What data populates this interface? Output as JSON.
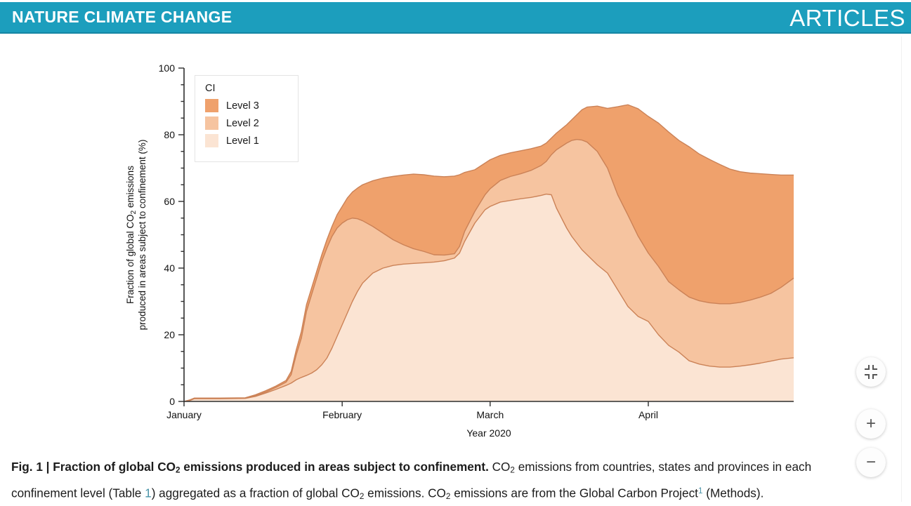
{
  "header": {
    "journal": "NATURE CLIMATE CHANGE",
    "section": "ARTICLES",
    "bg_color": "#1C9EBD"
  },
  "zoom_controls": {
    "fit": {
      "icon": "compress-icon"
    },
    "in": {
      "label": "+"
    },
    "out": {
      "label": "−"
    }
  },
  "caption": {
    "line1": [
      {
        "t": "Fig. 1 | Fraction of global CO",
        "b": true
      },
      {
        "t": "2",
        "b": true,
        "sub": true
      },
      {
        "t": " emissions produced in areas subject to confinement.",
        "b": true
      },
      {
        "t": " CO"
      },
      {
        "t": "2",
        "sub": true
      },
      {
        "t": " emissions from countries, states and provinces in each"
      }
    ],
    "line2": [
      {
        "t": "confinement level (Table "
      },
      {
        "t": "1",
        "link": true
      },
      {
        "t": ") aggregated as a fraction of global CO"
      },
      {
        "t": "2",
        "sub": true
      },
      {
        "t": " emissions. CO"
      },
      {
        "t": "2",
        "sub": true
      },
      {
        "t": " emissions are from the Global Carbon Project"
      },
      {
        "t": "1",
        "sup": true,
        "link": true
      },
      {
        "t": " (Methods)."
      }
    ]
  },
  "chart_data": {
    "type": "area",
    "stacked": true,
    "xlabel": "Year 2020",
    "ylabel_lines": [
      [
        {
          "t": "Fraction of global CO"
        },
        {
          "t": "2",
          "sub": true
        },
        {
          "t": " emissions"
        }
      ],
      [
        {
          "t": "produced in areas subject to confinement (%)"
        }
      ]
    ],
    "ylim": [
      0,
      100
    ],
    "y_major_ticks": [
      0,
      20,
      40,
      60,
      80,
      100
    ],
    "y_minor_step": 5,
    "x_range_days": [
      1,
      120.5
    ],
    "x_ticks": [
      {
        "day": 1,
        "label": "January"
      },
      {
        "day": 32,
        "label": "February"
      },
      {
        "day": 61,
        "label": "March"
      },
      {
        "day": 92,
        "label": "April"
      }
    ],
    "legend": {
      "title": "CI",
      "entries": [
        {
          "label": "Level 3",
          "color": "#EFA16C"
        },
        {
          "label": "Level 2",
          "color": "#F6C4A0"
        },
        {
          "label": "Level 1",
          "color": "#FBE4D3"
        }
      ]
    },
    "stroke_color": "#CB8257",
    "axis_color": "#2e2e2e",
    "days": [
      1,
      2,
      3,
      8,
      13,
      15,
      17,
      19,
      21,
      22,
      23,
      24,
      25,
      26,
      27,
      28,
      29,
      30,
      31,
      32,
      33,
      34,
      35,
      36,
      38,
      40,
      42,
      44,
      46,
      48,
      50,
      52,
      54,
      55,
      56,
      58,
      60,
      61,
      63,
      65,
      67,
      69,
      71,
      72,
      73,
      74,
      76,
      77,
      78,
      79,
      80,
      82,
      84,
      86,
      88,
      90,
      92,
      94,
      96,
      98,
      100,
      102,
      104,
      106,
      108,
      110,
      112,
      114,
      116,
      118,
      120.5
    ],
    "boundaries": {
      "level1_top": [
        0,
        0.2,
        0.8,
        0.8,
        0.9,
        1.5,
        2.5,
        3.6,
        4.8,
        5.5,
        6.5,
        7.2,
        7.8,
        8.5,
        9.5,
        11,
        13,
        16,
        19.5,
        23,
        26.5,
        30,
        33,
        35.5,
        38.5,
        40,
        40.8,
        41.2,
        41.4,
        41.6,
        41.8,
        42.2,
        43,
        44.5,
        48,
        53.5,
        57.5,
        58.5,
        59.8,
        60.3,
        60.8,
        61.2,
        61.8,
        62.2,
        62,
        58,
        52,
        49.5,
        47.5,
        45.5,
        44,
        41,
        38.5,
        33.5,
        28.5,
        25.5,
        24,
        20,
        16.8,
        14.8,
        12.2,
        11.2,
        10.6,
        10.3,
        10.3,
        10.6,
        11,
        11.5,
        12.1,
        12.7,
        13.1
      ],
      "level2_top": [
        0,
        0.3,
        0.9,
        0.9,
        1,
        1.7,
        2.8,
        4.2,
        5.8,
        8,
        14,
        19,
        27,
        32,
        37,
        42,
        46,
        49.5,
        52,
        53.5,
        54.5,
        55,
        54.8,
        54.2,
        52.5,
        50.5,
        48.5,
        47,
        45.8,
        45,
        44,
        43.9,
        44.3,
        46.5,
        51,
        57,
        62,
        63.8,
        66.3,
        67.5,
        68.3,
        69.3,
        70.8,
        72,
        74,
        75.5,
        77.5,
        78.3,
        78.6,
        78.4,
        77.8,
        75,
        70,
        62,
        55.9,
        49.6,
        44.5,
        40.5,
        35.9,
        33.5,
        31.3,
        30.2,
        29.6,
        29.3,
        29.3,
        29.7,
        30.4,
        31.3,
        32.4,
        34.2,
        37
      ],
      "level3_top": [
        0,
        0.4,
        1,
        1,
        1.1,
        2,
        3.2,
        4.6,
        6.3,
        9,
        15.5,
        21,
        29,
        34,
        39,
        44,
        48.5,
        52.5,
        56,
        58.5,
        61,
        62.8,
        64,
        65,
        66.2,
        67,
        67.5,
        67.9,
        68.2,
        68,
        67.6,
        67.4,
        67.6,
        68,
        68.7,
        69.5,
        71.5,
        72.5,
        73.8,
        74.6,
        75.2,
        75.8,
        76.6,
        77.5,
        79,
        80.5,
        83,
        84.5,
        86,
        87.5,
        88.3,
        88.6,
        87.9,
        88.4,
        89,
        87.8,
        85.5,
        83.5,
        80.8,
        78.3,
        76.4,
        74.2,
        72.6,
        71.1,
        69.7,
        68.9,
        68.5,
        68.3,
        68.1,
        67.9,
        67.9
      ]
    }
  }
}
